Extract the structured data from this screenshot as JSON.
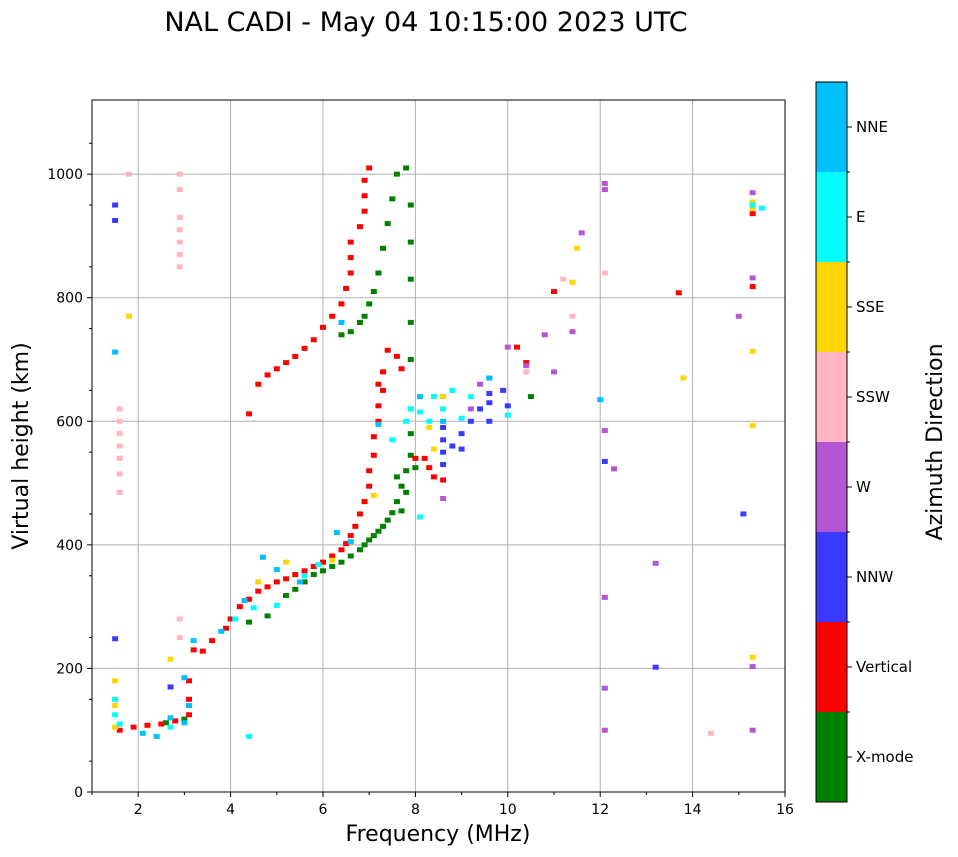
{
  "chart_data": {
    "type": "scatter",
    "title": "NAL CADI - May 04 10:15:00 2023 UTC",
    "xlabel": "Frequency (MHz)",
    "ylabel": "Virtual height (km)",
    "xlim": [
      1,
      16
    ],
    "ylim": [
      0,
      1120
    ],
    "xticks": [
      2,
      4,
      6,
      8,
      10,
      12,
      14,
      16
    ],
    "xtick_labels": [
      "2",
      "4",
      "6",
      "8",
      "10",
      "12",
      "14",
      "16"
    ],
    "yticks": [
      0,
      200,
      400,
      600,
      800,
      1000
    ],
    "ytick_labels": [
      "0",
      "200",
      "400",
      "600",
      "800",
      "1000"
    ],
    "grid": true,
    "colorbar": {
      "label": "Azimuth Direction",
      "categories": [
        {
          "name": "X-mode",
          "color": "#008000"
        },
        {
          "name": "Vertical",
          "color": "#ff0000"
        },
        {
          "name": "NNW",
          "color": "#3a3aff"
        },
        {
          "name": "W",
          "color": "#b455d6"
        },
        {
          "name": "SSW",
          "color": "#ffb6c1"
        },
        {
          "name": "SSE",
          "color": "#ffd700"
        },
        {
          "name": "E",
          "color": "#00ffff"
        },
        {
          "name": "NNE",
          "color": "#00bfff"
        }
      ]
    },
    "series": [
      {
        "name": "X-mode",
        "color": "#008000",
        "points": [
          [
            2.6,
            112
          ],
          [
            3.0,
            118
          ],
          [
            4.4,
            275
          ],
          [
            4.8,
            285
          ],
          [
            5.2,
            318
          ],
          [
            5.4,
            328
          ],
          [
            5.6,
            340
          ],
          [
            5.8,
            352
          ],
          [
            6.0,
            358
          ],
          [
            6.2,
            365
          ],
          [
            6.4,
            372
          ],
          [
            6.6,
            382
          ],
          [
            6.8,
            392
          ],
          [
            6.9,
            400
          ],
          [
            7.0,
            408
          ],
          [
            7.1,
            415
          ],
          [
            7.2,
            422
          ],
          [
            7.3,
            430
          ],
          [
            7.4,
            440
          ],
          [
            7.5,
            452
          ],
          [
            7.6,
            470
          ],
          [
            7.7,
            495
          ],
          [
            7.8,
            520
          ],
          [
            7.9,
            545
          ],
          [
            7.9,
            580
          ],
          [
            7.9,
            620
          ],
          [
            7.9,
            700
          ],
          [
            7.9,
            760
          ],
          [
            7.9,
            830
          ],
          [
            7.9,
            890
          ],
          [
            7.9,
            950
          ],
          [
            7.8,
            1010
          ],
          [
            7.6,
            1000
          ],
          [
            7.5,
            960
          ],
          [
            7.4,
            920
          ],
          [
            7.3,
            880
          ],
          [
            7.2,
            840
          ],
          [
            7.1,
            810
          ],
          [
            7.0,
            790
          ],
          [
            6.9,
            770
          ],
          [
            6.8,
            760
          ],
          [
            6.6,
            745
          ],
          [
            6.4,
            740
          ],
          [
            7.7,
            455
          ],
          [
            7.8,
            485
          ],
          [
            7.6,
            510
          ],
          [
            8.0,
            525
          ],
          [
            10.5,
            640
          ]
        ]
      },
      {
        "name": "Vertical",
        "color": "#ff0000",
        "points": [
          [
            1.6,
            100
          ],
          [
            1.9,
            105
          ],
          [
            2.2,
            108
          ],
          [
            2.5,
            110
          ],
          [
            2.8,
            115
          ],
          [
            3.1,
            125
          ],
          [
            3.1,
            150
          ],
          [
            3.1,
            180
          ],
          [
            3.2,
            230
          ],
          [
            3.4,
            228
          ],
          [
            3.6,
            245
          ],
          [
            3.9,
            265
          ],
          [
            4.0,
            280
          ],
          [
            4.2,
            300
          ],
          [
            4.4,
            312
          ],
          [
            4.6,
            325
          ],
          [
            4.8,
            332
          ],
          [
            5.0,
            340
          ],
          [
            5.2,
            345
          ],
          [
            5.4,
            352
          ],
          [
            5.6,
            358
          ],
          [
            5.8,
            365
          ],
          [
            6.0,
            372
          ],
          [
            6.2,
            382
          ],
          [
            6.4,
            392
          ],
          [
            6.5,
            402
          ],
          [
            6.6,
            415
          ],
          [
            6.7,
            430
          ],
          [
            6.8,
            450
          ],
          [
            6.9,
            470
          ],
          [
            7.0,
            495
          ],
          [
            7.0,
            520
          ],
          [
            7.1,
            545
          ],
          [
            7.1,
            575
          ],
          [
            7.2,
            600
          ],
          [
            7.2,
            625
          ],
          [
            7.3,
            650
          ],
          [
            7.3,
            680
          ],
          [
            4.6,
            660
          ],
          [
            4.8,
            675
          ],
          [
            5.0,
            685
          ],
          [
            5.2,
            695
          ],
          [
            5.4,
            705
          ],
          [
            5.6,
            718
          ],
          [
            5.8,
            732
          ],
          [
            6.0,
            752
          ],
          [
            6.2,
            770
          ],
          [
            6.4,
            790
          ],
          [
            6.5,
            815
          ],
          [
            6.6,
            840
          ],
          [
            6.6,
            865
          ],
          [
            6.6,
            890
          ],
          [
            6.8,
            915
          ],
          [
            6.9,
            940
          ],
          [
            6.9,
            965
          ],
          [
            6.9,
            990
          ],
          [
            7.0,
            1010
          ],
          [
            7.4,
            715
          ],
          [
            7.6,
            705
          ],
          [
            7.7,
            685
          ],
          [
            8.2,
            540
          ],
          [
            8.3,
            525
          ],
          [
            8.4,
            510
          ],
          [
            8.6,
            505
          ],
          [
            10.2,
            720
          ],
          [
            10.4,
            695
          ],
          [
            11.0,
            810
          ],
          [
            13.7,
            808
          ],
          [
            15.3,
            936
          ],
          [
            15.3,
            818
          ],
          [
            4.4,
            612
          ],
          [
            7.2,
            660
          ],
          [
            8.0,
            540
          ]
        ]
      },
      {
        "name": "NNW",
        "color": "#3a3aff",
        "points": [
          [
            1.5,
            950
          ],
          [
            1.5,
            925
          ],
          [
            1.5,
            248
          ],
          [
            8.6,
            590
          ],
          [
            8.6,
            570
          ],
          [
            8.6,
            550
          ],
          [
            8.6,
            530
          ],
          [
            8.8,
            560
          ],
          [
            9.0,
            580
          ],
          [
            9.0,
            555
          ],
          [
            9.2,
            600
          ],
          [
            9.4,
            620
          ],
          [
            9.6,
            630
          ],
          [
            9.6,
            645
          ],
          [
            9.6,
            600
          ],
          [
            9.9,
            650
          ],
          [
            10.0,
            625
          ],
          [
            12.1,
            535
          ],
          [
            13.2,
            202
          ],
          [
            15.1,
            450
          ],
          [
            2.7,
            170
          ]
        ]
      },
      {
        "name": "W",
        "color": "#b455d6",
        "points": [
          [
            8.6,
            475
          ],
          [
            9.2,
            620
          ],
          [
            9.4,
            660
          ],
          [
            9.6,
            670
          ],
          [
            10.0,
            720
          ],
          [
            10.4,
            690
          ],
          [
            10.8,
            740
          ],
          [
            11.0,
            680
          ],
          [
            11.4,
            745
          ],
          [
            11.6,
            905
          ],
          [
            12.1,
            985
          ],
          [
            12.1,
            975
          ],
          [
            12.1,
            585
          ],
          [
            12.3,
            523
          ],
          [
            12.1,
            315
          ],
          [
            12.1,
            168
          ],
          [
            12.1,
            100
          ],
          [
            13.2,
            370
          ],
          [
            15.0,
            770
          ],
          [
            15.3,
            970
          ],
          [
            15.3,
            832
          ],
          [
            15.3,
            203
          ],
          [
            15.3,
            100
          ]
        ]
      },
      {
        "name": "SSW",
        "color": "#ffb6c1",
        "points": [
          [
            1.6,
            620
          ],
          [
            1.6,
            600
          ],
          [
            1.6,
            580
          ],
          [
            1.6,
            560
          ],
          [
            1.6,
            540
          ],
          [
            1.6,
            515
          ],
          [
            1.6,
            485
          ],
          [
            1.8,
            1000
          ],
          [
            2.9,
            1000
          ],
          [
            2.9,
            975
          ],
          [
            2.9,
            930
          ],
          [
            2.9,
            910
          ],
          [
            2.9,
            890
          ],
          [
            2.9,
            870
          ],
          [
            2.9,
            850
          ],
          [
            2.9,
            280
          ],
          [
            2.9,
            250
          ],
          [
            10.4,
            680
          ],
          [
            12.1,
            840
          ],
          [
            14.4,
            95
          ],
          [
            11.2,
            830
          ],
          [
            11.4,
            770
          ]
        ]
      },
      {
        "name": "SSE",
        "color": "#ffd700",
        "points": [
          [
            1.5,
            180
          ],
          [
            1.5,
            140
          ],
          [
            1.5,
            105
          ],
          [
            1.8,
            770
          ],
          [
            2.7,
            215
          ],
          [
            4.6,
            340
          ],
          [
            5.2,
            372
          ],
          [
            6.2,
            375
          ],
          [
            7.1,
            480
          ],
          [
            8.3,
            590
          ],
          [
            8.4,
            555
          ],
          [
            8.6,
            640
          ],
          [
            11.5,
            880
          ],
          [
            11.4,
            825
          ],
          [
            13.8,
            670
          ],
          [
            15.3,
            955
          ],
          [
            15.3,
            945
          ],
          [
            15.3,
            713
          ],
          [
            15.3,
            593
          ],
          [
            15.3,
            218
          ]
        ]
      },
      {
        "name": "E",
        "color": "#00ffff",
        "points": [
          [
            1.5,
            150
          ],
          [
            1.5,
            125
          ],
          [
            1.6,
            110
          ],
          [
            4.1,
            280
          ],
          [
            4.5,
            298
          ],
          [
            5.0,
            302
          ],
          [
            5.6,
            350
          ],
          [
            5.9,
            368
          ],
          [
            7.5,
            570
          ],
          [
            7.8,
            600
          ],
          [
            7.9,
            620
          ],
          [
            8.1,
            615
          ],
          [
            8.3,
            600
          ],
          [
            8.4,
            640
          ],
          [
            8.6,
            620
          ],
          [
            8.8,
            650
          ],
          [
            9.0,
            605
          ],
          [
            9.2,
            640
          ],
          [
            8.1,
            445
          ],
          [
            2.7,
            105
          ],
          [
            4.4,
            90
          ],
          [
            10.0,
            610
          ],
          [
            15.3,
            950
          ],
          [
            15.5,
            945
          ]
        ]
      },
      {
        "name": "NNE",
        "color": "#00bfff",
        "points": [
          [
            1.5,
            712
          ],
          [
            2.1,
            95
          ],
          [
            2.4,
            90
          ],
          [
            2.7,
            120
          ],
          [
            3.0,
            185
          ],
          [
            3.1,
            140
          ],
          [
            3.2,
            245
          ],
          [
            3.8,
            260
          ],
          [
            4.3,
            310
          ],
          [
            4.7,
            380
          ],
          [
            5.0,
            360
          ],
          [
            5.5,
            340
          ],
          [
            6.3,
            420
          ],
          [
            6.6,
            405
          ],
          [
            7.2,
            595
          ],
          [
            8.1,
            640
          ],
          [
            8.6,
            600
          ],
          [
            9.6,
            670
          ],
          [
            12.0,
            635
          ],
          [
            3.0,
            112
          ],
          [
            6.4,
            760
          ]
        ]
      }
    ]
  }
}
